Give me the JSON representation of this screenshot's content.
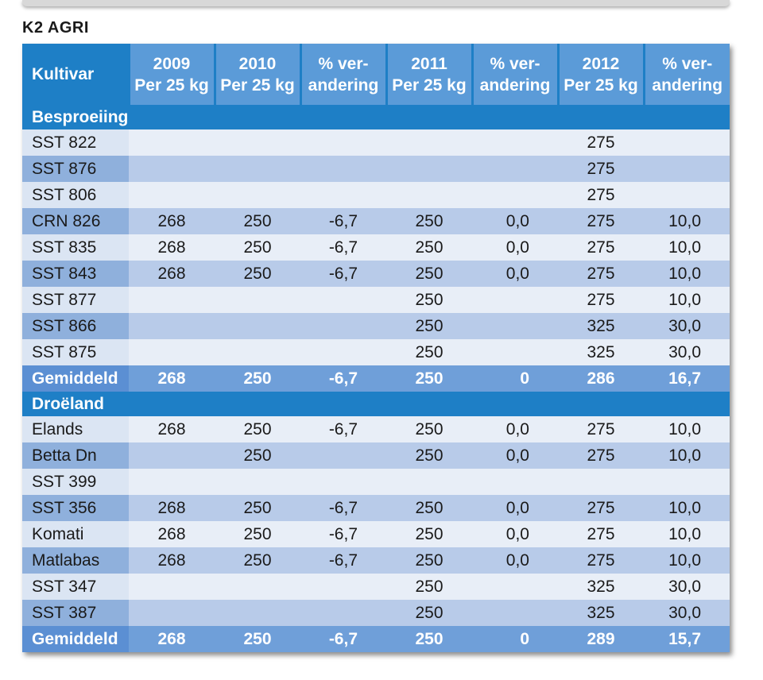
{
  "brand": "K2 AGRI",
  "table": {
    "headers": [
      {
        "line1": "Kultivar",
        "line2": ""
      },
      {
        "line1": "2009",
        "line2": "Per 25 kg"
      },
      {
        "line1": "2010",
        "line2": "Per 25 kg"
      },
      {
        "line1": "% ver-",
        "line2": "andering"
      },
      {
        "line1": "2011",
        "line2": "Per 25 kg"
      },
      {
        "line1": "% ver-",
        "line2": "andering"
      },
      {
        "line1": "2012",
        "line2": "Per 25 kg"
      },
      {
        "line1": "% ver-",
        "line2": "andering"
      }
    ],
    "sections": [
      {
        "title": "Besproeiing",
        "rows": [
          [
            "SST 822",
            "",
            "",
            "",
            "",
            "",
            "275",
            ""
          ],
          [
            "SST 876",
            "",
            "",
            "",
            "",
            "",
            "275",
            ""
          ],
          [
            "SST 806",
            "",
            "",
            "",
            "",
            "",
            "275",
            ""
          ],
          [
            "CRN 826",
            "268",
            "250",
            "-6,7",
            "250",
            "0,0",
            "275",
            "10,0"
          ],
          [
            "SST 835",
            "268",
            "250",
            "-6,7",
            "250",
            "0,0",
            "275",
            "10,0"
          ],
          [
            "SST 843",
            "268",
            "250",
            "-6,7",
            "250",
            "0,0",
            "275",
            "10,0"
          ],
          [
            "SST 877",
            "",
            "",
            "",
            "250",
            "",
            "275",
            "10,0"
          ],
          [
            "SST 866",
            "",
            "",
            "",
            "250",
            "",
            "325",
            "30,0"
          ],
          [
            "SST 875",
            "",
            "",
            "",
            "250",
            "",
            "325",
            "30,0"
          ]
        ],
        "average": [
          "Gemiddeld",
          "268",
          "250",
          "-6,7",
          "250",
          "0",
          "286",
          "16,7"
        ]
      },
      {
        "title": "Droëland",
        "rows": [
          [
            "Elands",
            "268",
            "250",
            "-6,7",
            "250",
            "0,0",
            "275",
            "10,0"
          ],
          [
            "Betta Dn",
            "",
            "250",
            "",
            "250",
            "0,0",
            "275",
            "10,0"
          ],
          [
            "SST 399",
            "",
            "",
            "",
            "",
            "",
            "",
            ""
          ],
          [
            "SST 356",
            "268",
            "250",
            "-6,7",
            "250",
            "0,0",
            "275",
            "10,0"
          ],
          [
            "Komati",
            "268",
            "250",
            "-6,7",
            "250",
            "0,0",
            "275",
            "10,0"
          ],
          [
            "Matlabas",
            "268",
            "250",
            "-6,7",
            "250",
            "0,0",
            "275",
            "10,0"
          ],
          [
            "SST 347",
            "",
            "",
            "",
            "250",
            "",
            "325",
            "30,0"
          ],
          [
            "SST 387",
            "",
            "",
            "",
            "250",
            "",
            "325",
            "30,0"
          ]
        ],
        "average": [
          "Gemiddeld",
          "268",
          "250",
          "-6,7",
          "250",
          "0",
          "289",
          "15,7"
        ]
      }
    ]
  },
  "colors": {
    "header_blue": "#1e7fc6",
    "header_cell": "#5b9bd8",
    "row_light": "#e8eef7",
    "row_alt": "#b8cbe9",
    "average_row": "#6f9fd9"
  }
}
